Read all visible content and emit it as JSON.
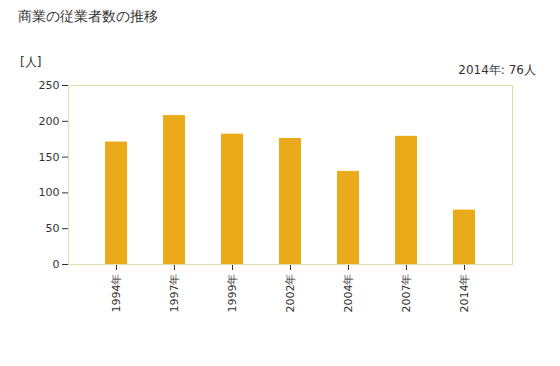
{
  "chart_data": {
    "type": "bar",
    "title": "商業の従業者数の推移",
    "y_label": "[人]",
    "annotation": "2014年: 76人",
    "categories": [
      "1994年",
      "1997年",
      "1999年",
      "2002年",
      "2004年",
      "2007年",
      "2014年"
    ],
    "values": [
      171,
      208,
      182,
      176,
      130,
      179,
      76
    ],
    "color": "#eaaa1a",
    "ylim": [
      0,
      250
    ],
    "yticks": [
      0,
      50,
      100,
      150,
      200,
      250
    ],
    "grid": false
  }
}
